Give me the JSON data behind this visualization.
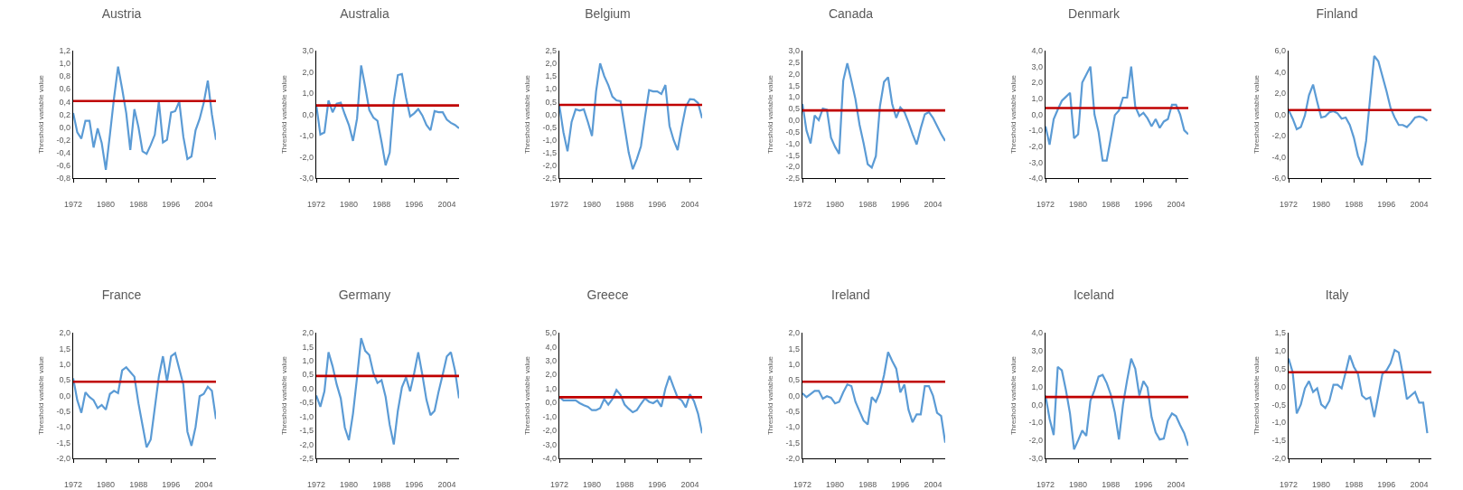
{
  "chart_data": [
    {
      "type": "line",
      "title": "Austria",
      "ylabel": "Threshold variable value",
      "color": "#5b9bd5",
      "xlim": [
        1972,
        2007
      ],
      "xticks": [
        1972,
        1980,
        1988,
        1996,
        2004
      ],
      "ylim": [
        -0.8,
        1.2
      ],
      "yticks": [
        {
          "value": -0.8,
          "label": "-0,8"
        },
        {
          "value": -0.6,
          "label": "-0,6"
        },
        {
          "value": -0.4,
          "label": "-0,4"
        },
        {
          "value": -0.2,
          "label": "-0,2"
        },
        {
          "value": 0,
          "label": "0,0"
        },
        {
          "value": 0.2,
          "label": "0,2"
        },
        {
          "value": 0.4,
          "label": "0,4"
        },
        {
          "value": 0.6,
          "label": "0,6"
        },
        {
          "value": 0.8,
          "label": "0,8"
        },
        {
          "value": 1.0,
          "label": "1,0"
        },
        {
          "value": 1.2,
          "label": "1,2"
        }
      ],
      "ref_lines": [
        {
          "axis": "y",
          "value": 0.41,
          "color": "#c00000"
        }
      ],
      "x": [
        1972,
        1973,
        1974,
        1975,
        1976,
        1977,
        1978,
        1979,
        1980,
        1981,
        1982,
        1983,
        1984,
        1985,
        1986,
        1987,
        1988,
        1989,
        1990,
        1991,
        1992,
        1993,
        1994,
        1995,
        1996,
        1997,
        1998,
        1999,
        2000,
        2001,
        2002,
        2003,
        2004,
        2005,
        2006,
        2007
      ],
      "values": [
        0.22,
        -0.08,
        -0.18,
        0.1,
        0.1,
        -0.32,
        -0.02,
        -0.25,
        -0.67,
        -0.12,
        0.45,
        0.95,
        0.6,
        0.22,
        -0.36,
        0.28,
        0.0,
        -0.38,
        -0.42,
        -0.28,
        -0.12,
        0.4,
        -0.24,
        -0.2,
        0.23,
        0.25,
        0.4,
        -0.15,
        -0.5,
        -0.46,
        -0.05,
        0.13,
        0.38,
        0.73,
        0.2,
        -0.2
      ]
    },
    {
      "type": "line",
      "title": "Australia",
      "ylabel": "Threshold variable value",
      "color": "#5b9bd5",
      "xlim": [
        1972,
        2007
      ],
      "xticks": [
        1972,
        1980,
        1988,
        1996,
        2004
      ],
      "ylim": [
        -3,
        3
      ],
      "yticks": [
        {
          "value": -3,
          "label": "-3,0"
        },
        {
          "value": -2,
          "label": "-2,0"
        },
        {
          "value": -1,
          "label": "-1,0"
        },
        {
          "value": 0,
          "label": "0,0"
        },
        {
          "value": 1,
          "label": "1,0"
        },
        {
          "value": 2,
          "label": "2,0"
        },
        {
          "value": 3,
          "label": "3,0"
        }
      ],
      "ref_lines": [
        {
          "axis": "y",
          "value": 0.42,
          "color": "#c00000"
        }
      ],
      "x": [
        1972,
        1973,
        1974,
        1975,
        1976,
        1977,
        1978,
        1979,
        1980,
        1981,
        1982,
        1983,
        1984,
        1985,
        1986,
        1987,
        1988,
        1989,
        1990,
        1991,
        1992,
        1993,
        1994,
        1995,
        1996,
        1997,
        1998,
        1999,
        2000,
        2001,
        2002,
        2003,
        2004,
        2005,
        2006,
        2007
      ],
      "values": [
        0.45,
        -0.95,
        -0.85,
        0.65,
        0.1,
        0.5,
        0.55,
        0.0,
        -0.5,
        -1.25,
        -0.2,
        2.3,
        1.3,
        0.2,
        -0.15,
        -0.3,
        -1.3,
        -2.4,
        -1.8,
        0.6,
        1.85,
        1.9,
        0.8,
        -0.1,
        0.05,
        0.25,
        -0.05,
        -0.5,
        -0.75,
        0.15,
        0.1,
        0.1,
        -0.25,
        -0.4,
        -0.5,
        -0.65
      ]
    },
    {
      "type": "line",
      "title": "Belgium",
      "ylabel": "Threshold variable value",
      "color": "#5b9bd5",
      "xlim": [
        1972,
        2007
      ],
      "xticks": [
        1972,
        1980,
        1988,
        1996,
        2004
      ],
      "ylim": [
        -2.5,
        2.5
      ],
      "yticks": [
        {
          "value": -2.5,
          "label": "-2,5"
        },
        {
          "value": -2,
          "label": "-2,0"
        },
        {
          "value": -1.5,
          "label": "-1,5"
        },
        {
          "value": -1,
          "label": "-1,0"
        },
        {
          "value": -0.5,
          "label": "-0,5"
        },
        {
          "value": 0,
          "label": "0,0"
        },
        {
          "value": 0.5,
          "label": "0,5"
        },
        {
          "value": 1,
          "label": "1,0"
        },
        {
          "value": 1.5,
          "label": "1,5"
        },
        {
          "value": 2,
          "label": "2,0"
        },
        {
          "value": 2.5,
          "label": "2,5"
        }
      ],
      "ref_lines": [
        {
          "axis": "y",
          "value": 0.37,
          "color": "#c00000"
        }
      ],
      "x": [
        1972,
        1973,
        1974,
        1975,
        1976,
        1977,
        1978,
        1979,
        1980,
        1981,
        1982,
        1983,
        1984,
        1985,
        1986,
        1987,
        1988,
        1989,
        1990,
        1991,
        1992,
        1993,
        1994,
        1995,
        1996,
        1997,
        1998,
        1999,
        2000,
        2001,
        2002,
        2003,
        2004,
        2005,
        2006,
        2007
      ],
      "values": [
        0.35,
        -0.7,
        -1.45,
        -0.3,
        0.2,
        0.15,
        0.2,
        -0.3,
        -0.85,
        0.9,
        2.0,
        1.5,
        1.15,
        0.7,
        0.55,
        0.52,
        -0.5,
        -1.5,
        -2.15,
        -1.75,
        -1.25,
        -0.1,
        0.95,
        0.9,
        0.9,
        0.8,
        1.15,
        -0.45,
        -1.0,
        -1.4,
        -0.5,
        0.3,
        0.6,
        0.58,
        0.45,
        -0.15
      ]
    },
    {
      "type": "line",
      "title": "Canada",
      "ylabel": "Threshold variable value",
      "color": "#5b9bd5",
      "xlim": [
        1972,
        2007
      ],
      "xticks": [
        1972,
        1980,
        1988,
        1996,
        2004
      ],
      "ylim": [
        -2.5,
        3
      ],
      "yticks": [
        {
          "value": -2.5,
          "label": "-2,5"
        },
        {
          "value": -2,
          "label": "-2,0"
        },
        {
          "value": -1.5,
          "label": "-1,5"
        },
        {
          "value": -1,
          "label": "-1,0"
        },
        {
          "value": -0.5,
          "label": "-0,5"
        },
        {
          "value": 0,
          "label": "0,0"
        },
        {
          "value": 0.5,
          "label": "0,5"
        },
        {
          "value": 1,
          "label": "1,0"
        },
        {
          "value": 1.5,
          "label": "1,5"
        },
        {
          "value": 2,
          "label": "2,0"
        },
        {
          "value": 2.5,
          "label": "2,5"
        },
        {
          "value": 3,
          "label": "3,0"
        }
      ],
      "ref_lines": [
        {
          "axis": "y",
          "value": 0.42,
          "color": "#c00000"
        }
      ],
      "x": [
        1972,
        1973,
        1974,
        1975,
        1976,
        1977,
        1978,
        1979,
        1980,
        1981,
        1982,
        1983,
        1984,
        1985,
        1986,
        1987,
        1988,
        1989,
        1990,
        1991,
        1992,
        1993,
        1994,
        1995,
        1996,
        1997,
        1998,
        1999,
        2000,
        2001,
        2002,
        2003,
        2004,
        2005,
        2006,
        2007
      ],
      "values": [
        0.7,
        -0.45,
        -1.0,
        0.2,
        0.0,
        0.5,
        0.45,
        -0.75,
        -1.15,
        -1.45,
        1.7,
        2.45,
        1.7,
        0.9,
        -0.2,
        -1.0,
        -1.9,
        -2.05,
        -1.55,
        0.6,
        1.65,
        1.85,
        0.7,
        0.1,
        0.55,
        0.35,
        -0.1,
        -0.6,
        -1.05,
        -0.35,
        0.25,
        0.35,
        0.1,
        -0.25,
        -0.6,
        -0.9
      ]
    },
    {
      "type": "line",
      "title": "Denmark",
      "ylabel": "Threshold variable value",
      "color": "#5b9bd5",
      "xlim": [
        1972,
        2007
      ],
      "xticks": [
        1972,
        1980,
        1988,
        1996,
        2004
      ],
      "ylim": [
        -4,
        4
      ],
      "yticks": [
        {
          "value": -4,
          "label": "-4,0"
        },
        {
          "value": -3,
          "label": "-3,0"
        },
        {
          "value": -2,
          "label": "-2,0"
        },
        {
          "value": -1,
          "label": "-1,0"
        },
        {
          "value": 0,
          "label": "0,0"
        },
        {
          "value": 1,
          "label": "1,0"
        },
        {
          "value": 2,
          "label": "2,0"
        },
        {
          "value": 3,
          "label": "3,0"
        },
        {
          "value": 4,
          "label": "4,0"
        }
      ],
      "ref_lines": [
        {
          "axis": "y",
          "value": 0.4,
          "color": "#c00000"
        }
      ],
      "x": [
        1972,
        1973,
        1974,
        1975,
        1976,
        1977,
        1978,
        1979,
        1980,
        1981,
        1982,
        1983,
        1984,
        1985,
        1986,
        1987,
        1988,
        1989,
        1990,
        1991,
        1992,
        1993,
        1994,
        1995,
        1996,
        1997,
        1998,
        1999,
        2000,
        2001,
        2002,
        2003,
        2004,
        2005,
        2006,
        2007
      ],
      "values": [
        -0.75,
        -1.9,
        -0.3,
        0.3,
        0.85,
        1.1,
        1.35,
        -1.5,
        -1.25,
        2.0,
        2.5,
        3.0,
        0.0,
        -1.1,
        -2.9,
        -2.9,
        -1.5,
        -0.05,
        0.25,
        1.05,
        1.05,
        3.0,
        0.5,
        -0.1,
        0.1,
        -0.25,
        -0.75,
        -0.3,
        -0.85,
        -0.45,
        -0.3,
        0.6,
        0.6,
        0.0,
        -1.0,
        -1.25
      ]
    },
    {
      "type": "line",
      "title": "Finland",
      "ylabel": "Threshold variable value",
      "color": "#5b9bd5",
      "xlim": [
        1972,
        2007
      ],
      "xticks": [
        1972,
        1980,
        1988,
        1996,
        2004
      ],
      "ylim": [
        -6,
        6
      ],
      "yticks": [
        {
          "value": -6,
          "label": "-6,0"
        },
        {
          "value": -4,
          "label": "-4,0"
        },
        {
          "value": -2,
          "label": "-2,0"
        },
        {
          "value": 0,
          "label": "0,0"
        },
        {
          "value": 2,
          "label": "2,0"
        },
        {
          "value": 4,
          "label": "4,0"
        },
        {
          "value": 6,
          "label": "6,0"
        }
      ],
      "ref_lines": [
        {
          "axis": "y",
          "value": 0.4,
          "color": "#c00000"
        }
      ],
      "x": [
        1972,
        1973,
        1974,
        1975,
        1976,
        1977,
        1978,
        1979,
        1980,
        1981,
        1982,
        1983,
        1984,
        1985,
        1986,
        1987,
        1988,
        1989,
        1990,
        1991,
        1992,
        1993,
        1994,
        1995,
        1996,
        1997,
        1998,
        1999,
        2000,
        2001,
        2002,
        2003,
        2004,
        2005,
        2006
      ],
      "values": [
        0.4,
        -0.4,
        -1.4,
        -1.2,
        -0.1,
        1.8,
        2.8,
        1.2,
        -0.3,
        -0.2,
        0.2,
        0.3,
        0.1,
        -0.4,
        -0.3,
        -1.0,
        -2.2,
        -3.9,
        -4.8,
        -2.5,
        1.6,
        5.5,
        5.0,
        3.6,
        2.2,
        0.6,
        -0.3,
        -1.0,
        -1.0,
        -1.2,
        -0.8,
        -0.3,
        -0.2,
        -0.3,
        -0.6
      ]
    },
    {
      "type": "line",
      "title": "France",
      "ylabel": "Threshold variable value",
      "color": "#5b9bd5",
      "xlim": [
        1972,
        2007
      ],
      "xticks": [
        1972,
        1980,
        1988,
        1996,
        2004
      ],
      "ylim": [
        -2,
        2
      ],
      "yticks": [
        {
          "value": -2,
          "label": "-2,0"
        },
        {
          "value": -1.5,
          "label": "-1,5"
        },
        {
          "value": -1,
          "label": "-1,0"
        },
        {
          "value": -0.5,
          "label": "-0,5"
        },
        {
          "value": 0,
          "label": "0,0"
        },
        {
          "value": 0.5,
          "label": "0,5"
        },
        {
          "value": 1,
          "label": "1,0"
        },
        {
          "value": 1.5,
          "label": "1,5"
        },
        {
          "value": 2,
          "label": "2,0"
        }
      ],
      "ref_lines": [
        {
          "axis": "y",
          "value": 0.44,
          "color": "#c00000"
        }
      ],
      "x": [
        1972,
        1973,
        1974,
        1975,
        1976,
        1977,
        1978,
        1979,
        1980,
        1981,
        1982,
        1983,
        1984,
        1985,
        1986,
        1987,
        1988,
        1989,
        1990,
        1991,
        1992,
        1993,
        1994,
        1995,
        1996,
        1997,
        1998,
        1999,
        2000,
        2001,
        2002,
        2003,
        2004,
        2005,
        2006,
        2007
      ],
      "values": [
        0.55,
        -0.15,
        -0.55,
        0.1,
        -0.05,
        -0.15,
        -0.4,
        -0.3,
        -0.45,
        0.05,
        0.15,
        0.08,
        0.8,
        0.9,
        0.75,
        0.6,
        -0.25,
        -0.95,
        -1.65,
        -1.4,
        -0.4,
        0.6,
        1.25,
        0.45,
        1.25,
        1.35,
        0.85,
        0.35,
        -1.15,
        -1.6,
        -1.0,
        -0.02,
        0.05,
        0.28,
        0.15,
        -0.75
      ]
    },
    {
      "type": "line",
      "title": "Germany",
      "ylabel": "Threshold variable value",
      "color": "#5b9bd5",
      "xlim": [
        1972,
        2007
      ],
      "xticks": [
        1972,
        1980,
        1988,
        1996,
        2004
      ],
      "ylim": [
        -2.5,
        2
      ],
      "yticks": [
        {
          "value": -2.5,
          "label": "-2,5"
        },
        {
          "value": -2,
          "label": "-2,0"
        },
        {
          "value": -1.5,
          "label": "-1,5"
        },
        {
          "value": -1,
          "label": "-1,0"
        },
        {
          "value": -0.5,
          "label": "-0,5"
        },
        {
          "value": 0,
          "label": "0,0"
        },
        {
          "value": 0.5,
          "label": "0,5"
        },
        {
          "value": 1,
          "label": "1,0"
        },
        {
          "value": 1.5,
          "label": "1,5"
        },
        {
          "value": 2,
          "label": "2,0"
        }
      ],
      "ref_lines": [
        {
          "axis": "y",
          "value": 0.45,
          "color": "#c00000"
        }
      ],
      "x": [
        1972,
        1973,
        1974,
        1975,
        1976,
        1977,
        1978,
        1979,
        1980,
        1981,
        1982,
        1983,
        1984,
        1985,
        1986,
        1987,
        1988,
        1989,
        1990,
        1991,
        1992,
        1993,
        1994,
        1995,
        1996,
        1997,
        1998,
        1999,
        2000,
        2001,
        2002,
        2003,
        2004,
        2005,
        2006,
        2007
      ],
      "values": [
        -0.25,
        -0.65,
        -0.1,
        1.3,
        0.8,
        0.15,
        -0.35,
        -1.4,
        -1.85,
        -0.9,
        0.4,
        1.8,
        1.35,
        1.2,
        0.55,
        0.2,
        0.3,
        -0.3,
        -1.3,
        -2.0,
        -0.8,
        0.05,
        0.4,
        -0.1,
        0.55,
        1.3,
        0.5,
        -0.4,
        -0.95,
        -0.8,
        -0.1,
        0.5,
        1.15,
        1.3,
        0.65,
        -0.35
      ]
    },
    {
      "type": "line",
      "title": "Greece",
      "ylabel": "Threshold variable value",
      "color": "#5b9bd5",
      "xlim": [
        1972,
        2007
      ],
      "xticks": [
        1972,
        1980,
        1988,
        1996,
        2004
      ],
      "ylim": [
        -4,
        5
      ],
      "yticks": [
        {
          "value": -4,
          "label": "-4,0"
        },
        {
          "value": -3,
          "label": "-3,0"
        },
        {
          "value": -2,
          "label": "-2,0"
        },
        {
          "value": -1,
          "label": "-1,0"
        },
        {
          "value": 0,
          "label": "0,0"
        },
        {
          "value": 1,
          "label": "1,0"
        },
        {
          "value": 2,
          "label": "2,0"
        },
        {
          "value": 3,
          "label": "3,0"
        },
        {
          "value": 4,
          "label": "4,0"
        },
        {
          "value": 5,
          "label": "5,0"
        }
      ],
      "ref_lines": [
        {
          "axis": "y",
          "value": 0.38,
          "color": "#c00000"
        }
      ],
      "x": [
        1972,
        1973,
        1974,
        1975,
        1976,
        1977,
        1978,
        1979,
        1980,
        1981,
        1982,
        1983,
        1984,
        1985,
        1986,
        1987,
        1988,
        1989,
        1990,
        1991,
        1992,
        1993,
        1994,
        1995,
        1996,
        1997,
        1998,
        1999,
        2000,
        2001,
        2002,
        2003,
        2004,
        2005,
        2006,
        2007
      ],
      "values": [
        0.4,
        0.15,
        0.15,
        0.15,
        0.15,
        -0.05,
        -0.2,
        -0.3,
        -0.55,
        -0.55,
        -0.4,
        0.25,
        -0.15,
        0.25,
        0.9,
        0.55,
        -0.15,
        -0.45,
        -0.7,
        -0.55,
        -0.1,
        0.3,
        0.05,
        -0.05,
        0.15,
        -0.3,
        1.0,
        1.9,
        1.1,
        0.35,
        0.15,
        -0.35,
        0.6,
        0.1,
        -0.8,
        -2.2
      ]
    },
    {
      "type": "line",
      "title": "Ireland",
      "ylabel": "Threshold variable value",
      "color": "#5b9bd5",
      "xlim": [
        1972,
        2007
      ],
      "xticks": [
        1972,
        1980,
        1988,
        1996,
        2004
      ],
      "ylim": [
        -2,
        2
      ],
      "yticks": [
        {
          "value": -2,
          "label": "-2,0"
        },
        {
          "value": -1.5,
          "label": "-1,5"
        },
        {
          "value": -1,
          "label": "-1,0"
        },
        {
          "value": -0.5,
          "label": "-0,5"
        },
        {
          "value": 0,
          "label": "0,0"
        },
        {
          "value": 0.5,
          "label": "0,5"
        },
        {
          "value": 1,
          "label": "1,0"
        },
        {
          "value": 1.5,
          "label": "1,5"
        },
        {
          "value": 2,
          "label": "2,0"
        }
      ],
      "ref_lines": [
        {
          "axis": "y",
          "value": 0.44,
          "color": "#c00000"
        }
      ],
      "x": [
        1972,
        1973,
        1974,
        1975,
        1976,
        1977,
        1978,
        1979,
        1980,
        1981,
        1982,
        1983,
        1984,
        1985,
        1986,
        1987,
        1988,
        1989,
        1990,
        1991,
        1992,
        1993,
        1994,
        1995,
        1996,
        1997,
        1998,
        1999,
        2000,
        2001,
        2002,
        2003,
        2004,
        2005,
        2006,
        2007
      ],
      "values": [
        0.07,
        -0.05,
        0.05,
        0.15,
        0.15,
        -0.1,
        -0.02,
        -0.07,
        -0.25,
        -0.2,
        0.1,
        0.35,
        0.3,
        -0.2,
        -0.5,
        -0.8,
        -0.92,
        -0.05,
        -0.2,
        0.1,
        0.65,
        1.38,
        1.1,
        0.85,
        0.1,
        0.35,
        -0.45,
        -0.85,
        -0.6,
        -0.6,
        0.3,
        0.3,
        0.0,
        -0.55,
        -0.65,
        -1.5
      ]
    },
    {
      "type": "line",
      "title": "Iceland",
      "ylabel": "Threshold variable value",
      "color": "#5b9bd5",
      "xlim": [
        1972,
        2007
      ],
      "xticks": [
        1972,
        1980,
        1988,
        1996,
        2004
      ],
      "ylim": [
        -3,
        4
      ],
      "yticks": [
        {
          "value": -3,
          "label": "-3,0"
        },
        {
          "value": -2,
          "label": "-2,0"
        },
        {
          "value": -1,
          "label": "-1,0"
        },
        {
          "value": 0,
          "label": "0,0"
        },
        {
          "value": 1,
          "label": "1,0"
        },
        {
          "value": 2,
          "label": "2,0"
        },
        {
          "value": 3,
          "label": "3,0"
        },
        {
          "value": 4,
          "label": "4,0"
        }
      ],
      "ref_lines": [
        {
          "axis": "y",
          "value": 0.42,
          "color": "#c00000"
        }
      ],
      "x": [
        1972,
        1973,
        1974,
        1975,
        1976,
        1977,
        1978,
        1979,
        1980,
        1981,
        1982,
        1983,
        1984,
        1985,
        1986,
        1987,
        1988,
        1989,
        1990,
        1991,
        1992,
        1993,
        1994,
        1995,
        1996,
        1997,
        1998,
        1999,
        2000,
        2001,
        2002,
        2003,
        2004,
        2005,
        2006,
        2007
      ],
      "values": [
        0.5,
        -0.8,
        -1.7,
        2.1,
        1.9,
        0.8,
        -0.5,
        -2.5,
        -2.0,
        -1.45,
        -1.75,
        0.2,
        0.8,
        1.55,
        1.65,
        1.2,
        0.55,
        -0.45,
        -1.95,
        0.0,
        1.35,
        2.55,
        2.0,
        0.5,
        1.3,
        0.95,
        -0.7,
        -1.55,
        -1.95,
        -1.9,
        -0.9,
        -0.5,
        -0.65,
        -1.15,
        -1.6,
        -2.3
      ]
    },
    {
      "type": "line",
      "title": "Italy",
      "ylabel": "Threshold variable value",
      "color": "#5b9bd5",
      "xlim": [
        1972,
        2007
      ],
      "xticks": [
        1972,
        1980,
        1988,
        1996,
        2004
      ],
      "ylim": [
        -2,
        1.5
      ],
      "yticks": [
        {
          "value": -2,
          "label": "-2,0"
        },
        {
          "value": -1.5,
          "label": "-1,5"
        },
        {
          "value": -1,
          "label": "-1,0"
        },
        {
          "value": -0.5,
          "label": "-0,5"
        },
        {
          "value": 0,
          "label": "0,0"
        },
        {
          "value": 0.5,
          "label": "0,5"
        },
        {
          "value": 1,
          "label": "1,0"
        },
        {
          "value": 1.5,
          "label": "1,5"
        }
      ],
      "ref_lines": [
        {
          "axis": "y",
          "value": 0.4,
          "color": "#c00000"
        }
      ],
      "x": [
        1972,
        1973,
        1974,
        1975,
        1976,
        1977,
        1978,
        1979,
        1980,
        1981,
        1982,
        1983,
        1984,
        1985,
        1986,
        1987,
        1988,
        1989,
        1990,
        1991,
        1992,
        1993,
        1994,
        1995,
        1996,
        1997,
        1998,
        1999,
        2000,
        2001,
        2002,
        2003,
        2004,
        2005,
        2006
      ],
      "values": [
        0.78,
        0.4,
        -0.75,
        -0.5,
        -0.05,
        0.15,
        -0.15,
        -0.05,
        -0.5,
        -0.6,
        -0.4,
        0.05,
        0.05,
        -0.05,
        0.4,
        0.87,
        0.55,
        0.35,
        -0.25,
        -0.35,
        -0.3,
        -0.85,
        -0.25,
        0.35,
        0.45,
        0.65,
        1.02,
        0.95,
        0.35,
        -0.35,
        -0.25,
        -0.15,
        -0.45,
        -0.45,
        -1.3
      ]
    }
  ]
}
